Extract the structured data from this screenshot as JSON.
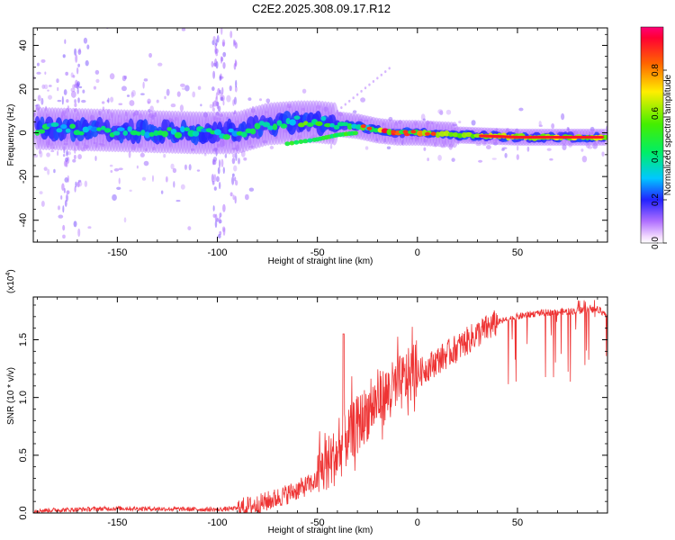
{
  "title": "C2E2.2025.308.09.17.R12",
  "chart_data": [
    {
      "type": "heatmap",
      "xlabel": "Height of straight line (km)",
      "ylabel": "Frequency (Hz)",
      "xlim": [
        -192,
        95
      ],
      "ylim": [
        -50,
        48
      ],
      "xticks": [
        -150,
        -100,
        -50,
        0,
        50
      ],
      "yticks": [
        -40,
        -20,
        0,
        20,
        40
      ],
      "colorbar": {
        "label": "Normalized spectral amplitude",
        "range": [
          0,
          1
        ],
        "ticks": [
          "0.0",
          "0.2",
          "0.4",
          "0.6",
          "0.8"
        ],
        "tick_values": [
          0.0,
          0.2,
          0.4,
          0.6,
          0.8
        ]
      },
      "ridge": {
        "description_points_km_hz": [
          [
            -190,
            2
          ],
          [
            -150,
            1
          ],
          [
            -110,
            0
          ],
          [
            -90,
            0
          ],
          [
            -75,
            4
          ],
          [
            -60,
            5
          ],
          [
            -50,
            5
          ],
          [
            -40,
            4
          ],
          [
            -30,
            3
          ],
          [
            -20,
            1
          ],
          [
            -10,
            0
          ],
          [
            0,
            0
          ],
          [
            20,
            -1
          ],
          [
            50,
            -2
          ],
          [
            80,
            -2
          ],
          [
            93,
            -2
          ]
        ],
        "secondary_track_km_hz": [
          [
            -65,
            -5
          ],
          [
            -50,
            -3
          ],
          [
            -40,
            -1
          ],
          [
            -30,
            0
          ]
        ]
      }
    },
    {
      "type": "line",
      "xlabel": "Height of straight line (km)",
      "ylabel": "SNR (10 * v/v)",
      "multiplier": "(x10",
      "multiplier_exp": "4",
      "multiplier_close": ")",
      "xlim": [
        -192,
        95
      ],
      "ylim": [
        0,
        1.87
      ],
      "xticks": [
        -150,
        -100,
        -50,
        0,
        50
      ],
      "yticks": [
        0.0,
        0.5,
        1.0,
        1.5
      ],
      "ytick_labels": [
        "0.0",
        "0.5",
        "1.0",
        "1.5"
      ],
      "color": "#ee3333",
      "series_trend": {
        "x": [
          -192,
          -150,
          -100,
          -90,
          -80,
          -70,
          -60,
          -50,
          -45,
          -40,
          -35,
          -30,
          -25,
          -20,
          -15,
          -10,
          -5,
          0,
          10,
          20,
          30,
          40,
          50,
          60,
          70,
          80,
          90,
          95
        ],
        "y": [
          0.02,
          0.04,
          0.03,
          0.04,
          0.07,
          0.13,
          0.2,
          0.28,
          0.38,
          0.45,
          0.6,
          0.72,
          0.82,
          0.92,
          0.98,
          1.05,
          1.12,
          1.2,
          1.32,
          1.43,
          1.55,
          1.65,
          1.7,
          1.73,
          1.74,
          1.75,
          1.76,
          1.7
        ]
      }
    }
  ]
}
